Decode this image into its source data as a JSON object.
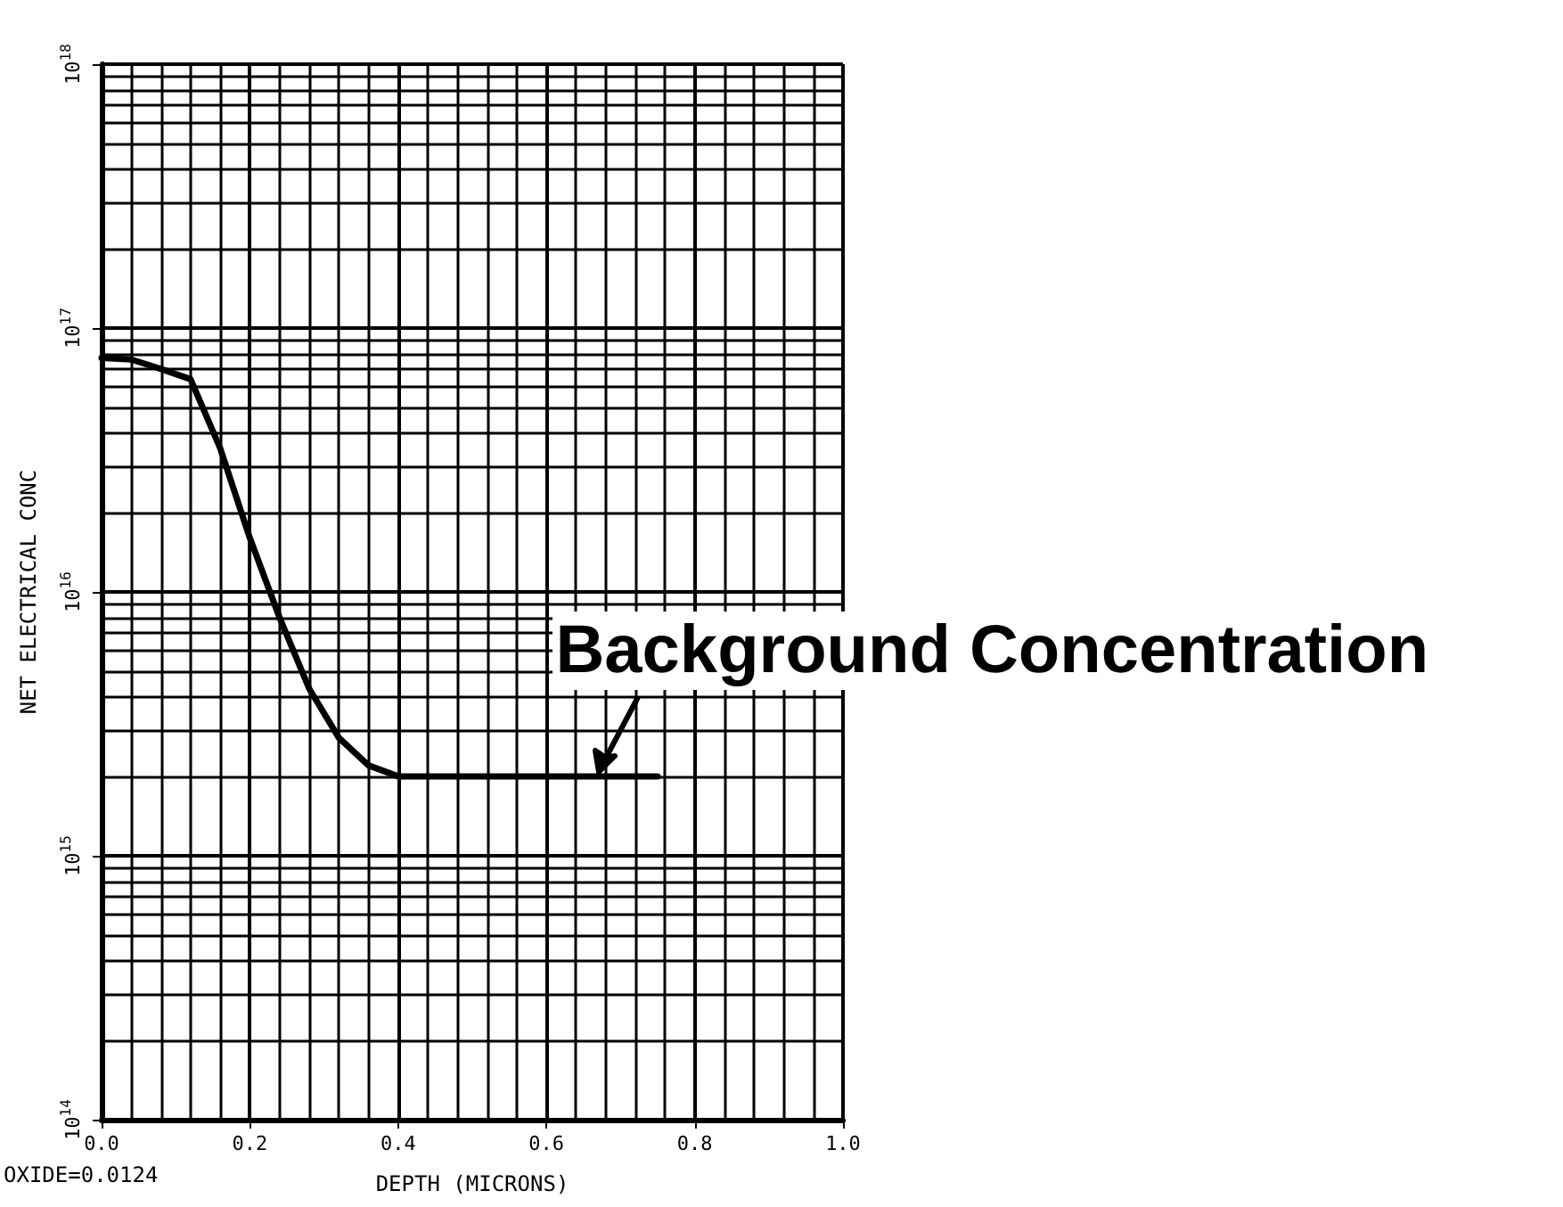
{
  "chart_data": {
    "type": "line",
    "xlabel": "DEPTH (MICRONS)",
    "ylabel": "NET ELECTRICAL CONC",
    "x": [
      0,
      0.04,
      0.08,
      0.12,
      0.16,
      0.2,
      0.24,
      0.28,
      0.32,
      0.36,
      0.4,
      0.45,
      0.5,
      0.6,
      0.7,
      0.75
    ],
    "series": [
      {
        "color": "#000000",
        "values": [
          7.7e+16,
          7.6e+16,
          7e+16,
          6.4e+16,
          3.5e+16,
          1.6e+16,
          8000000000000000.0,
          4300000000000000.0,
          2800000000000000.0,
          2200000000000000.0,
          2000000000000000.0,
          2000000000000000.0,
          2000000000000000.0,
          2000000000000000.0,
          2000000000000000.0,
          2000000000000000.0
        ]
      }
    ],
    "xlim": [
      0,
      1
    ],
    "xticks": [
      {
        "value": 0,
        "label": "0.0"
      },
      0.2,
      0.4,
      0.6,
      0.8,
      {
        "value": 1,
        "label": "1.0"
      }
    ],
    "ylim": [
      100000000000000.0,
      1e+18
    ],
    "yticks": [
      {
        "value": 100000000000000.0,
        "label": "10$^{14}$"
      },
      {
        "value": 1000000000000000.0,
        "label": "10$^{15}$"
      },
      {
        "value": 1e+16,
        "label": "10$^{16}$"
      },
      {
        "value": 1e+17,
        "label": "10$^{17}$"
      },
      {
        "value": 1e+18,
        "label": "10$^{18}$"
      }
    ],
    "log": "y",
    "grid": true,
    "marker": "none",
    "line_style": "solid",
    "annotations": [
      {
        "text": "Background Concentration",
        "x": 0.67,
        "y": 2000000000000000.0
      },
      "OXIDE=0.0124"
    ]
  }
}
